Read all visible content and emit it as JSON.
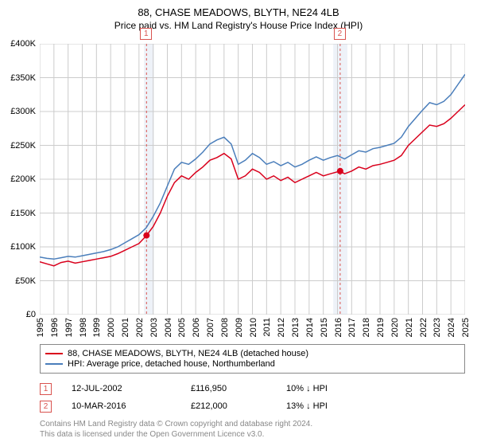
{
  "title": {
    "line1": "88, CHASE MEADOWS, BLYTH, NE24 4LB",
    "line2": "Price paid vs. HM Land Registry's House Price Index (HPI)"
  },
  "chart": {
    "type": "line",
    "background_color": "#ffffff",
    "grid_color": "#cccccc",
    "y": {
      "min": 0,
      "max": 400000,
      "step": 50000,
      "prefix": "£",
      "suffix": "K",
      "labels": [
        "£0",
        "£50K",
        "£100K",
        "£150K",
        "£200K",
        "£250K",
        "£300K",
        "£350K",
        "£400K"
      ]
    },
    "x": {
      "min": 1995,
      "max": 2025,
      "step": 1,
      "labels": [
        "1995",
        "1996",
        "1997",
        "1998",
        "1999",
        "2000",
        "2001",
        "2002",
        "2003",
        "2004",
        "2005",
        "2006",
        "2007",
        "2008",
        "2009",
        "2010",
        "2011",
        "2012",
        "2013",
        "2014",
        "2015",
        "2016",
        "2017",
        "2018",
        "2019",
        "2020",
        "2021",
        "2022",
        "2023",
        "2024",
        "2025"
      ]
    },
    "band1": {
      "x_start": 2002.35,
      "x_end": 2003.05,
      "color": "#eef2f8"
    },
    "band2": {
      "x_start": 2015.7,
      "x_end": 2016.7,
      "color": "#eef2f8"
    },
    "vline1": {
      "x": 2002.53,
      "color": "#d9534f",
      "dash": "3,3"
    },
    "vline2": {
      "x": 2016.19,
      "color": "#d9534f",
      "dash": "3,3"
    },
    "marker_labels": {
      "m1": "1",
      "m2": "2"
    },
    "marker_box_color": "#d9534f",
    "series": [
      {
        "name": "88, CHASE MEADOWS, BLYTH, NE24 4LB (detached house)",
        "color": "#d9001c",
        "width": 1.5,
        "data": [
          [
            1995,
            78000
          ],
          [
            1995.5,
            75000
          ],
          [
            1996,
            72000
          ],
          [
            1996.5,
            77000
          ],
          [
            1997,
            79000
          ],
          [
            1997.5,
            76000
          ],
          [
            1998,
            78000
          ],
          [
            1998.5,
            80000
          ],
          [
            1999,
            82000
          ],
          [
            1999.5,
            84000
          ],
          [
            2000,
            86000
          ],
          [
            2000.5,
            90000
          ],
          [
            2001,
            95000
          ],
          [
            2001.5,
            100000
          ],
          [
            2002,
            105000
          ],
          [
            2002.53,
            116950
          ],
          [
            2003,
            130000
          ],
          [
            2003.5,
            150000
          ],
          [
            2004,
            175000
          ],
          [
            2004.5,
            195000
          ],
          [
            2005,
            205000
          ],
          [
            2005.5,
            200000
          ],
          [
            2006,
            210000
          ],
          [
            2006.5,
            218000
          ],
          [
            2007,
            228000
          ],
          [
            2007.5,
            232000
          ],
          [
            2008,
            238000
          ],
          [
            2008.5,
            230000
          ],
          [
            2009,
            200000
          ],
          [
            2009.5,
            205000
          ],
          [
            2010,
            215000
          ],
          [
            2010.5,
            210000
          ],
          [
            2011,
            200000
          ],
          [
            2011.5,
            205000
          ],
          [
            2012,
            198000
          ],
          [
            2012.5,
            203000
          ],
          [
            2013,
            195000
          ],
          [
            2013.5,
            200000
          ],
          [
            2014,
            205000
          ],
          [
            2014.5,
            210000
          ],
          [
            2015,
            205000
          ],
          [
            2015.5,
            208000
          ],
          [
            2016.19,
            212000
          ],
          [
            2016.5,
            208000
          ],
          [
            2017,
            212000
          ],
          [
            2017.5,
            218000
          ],
          [
            2018,
            215000
          ],
          [
            2018.5,
            220000
          ],
          [
            2019,
            222000
          ],
          [
            2019.5,
            225000
          ],
          [
            2020,
            228000
          ],
          [
            2020.5,
            235000
          ],
          [
            2021,
            250000
          ],
          [
            2021.5,
            260000
          ],
          [
            2022,
            270000
          ],
          [
            2022.5,
            280000
          ],
          [
            2023,
            278000
          ],
          [
            2023.5,
            282000
          ],
          [
            2024,
            290000
          ],
          [
            2024.5,
            300000
          ],
          [
            2025,
            310000
          ]
        ],
        "points": [
          {
            "x": 2002.53,
            "y": 116950
          },
          {
            "x": 2016.19,
            "y": 212000
          }
        ],
        "point_radius": 4
      },
      {
        "name": "HPI: Average price, detached house, Northumberland",
        "color": "#4a7ebb",
        "width": 1.5,
        "data": [
          [
            1995,
            85000
          ],
          [
            1995.5,
            83000
          ],
          [
            1996,
            82000
          ],
          [
            1996.5,
            84000
          ],
          [
            1997,
            86000
          ],
          [
            1997.5,
            85000
          ],
          [
            1998,
            87000
          ],
          [
            1998.5,
            89000
          ],
          [
            1999,
            91000
          ],
          [
            1999.5,
            93000
          ],
          [
            2000,
            96000
          ],
          [
            2000.5,
            100000
          ],
          [
            2001,
            106000
          ],
          [
            2001.5,
            112000
          ],
          [
            2002,
            118000
          ],
          [
            2002.5,
            128000
          ],
          [
            2003,
            145000
          ],
          [
            2003.5,
            165000
          ],
          [
            2004,
            190000
          ],
          [
            2004.5,
            215000
          ],
          [
            2005,
            225000
          ],
          [
            2005.5,
            222000
          ],
          [
            2006,
            230000
          ],
          [
            2006.5,
            240000
          ],
          [
            2007,
            252000
          ],
          [
            2007.5,
            258000
          ],
          [
            2008,
            262000
          ],
          [
            2008.5,
            252000
          ],
          [
            2009,
            222000
          ],
          [
            2009.5,
            228000
          ],
          [
            2010,
            238000
          ],
          [
            2010.5,
            232000
          ],
          [
            2011,
            222000
          ],
          [
            2011.5,
            226000
          ],
          [
            2012,
            220000
          ],
          [
            2012.5,
            225000
          ],
          [
            2013,
            218000
          ],
          [
            2013.5,
            222000
          ],
          [
            2014,
            228000
          ],
          [
            2014.5,
            233000
          ],
          [
            2015,
            228000
          ],
          [
            2015.5,
            232000
          ],
          [
            2016,
            235000
          ],
          [
            2016.5,
            230000
          ],
          [
            2017,
            236000
          ],
          [
            2017.5,
            242000
          ],
          [
            2018,
            240000
          ],
          [
            2018.5,
            245000
          ],
          [
            2019,
            247000
          ],
          [
            2019.5,
            250000
          ],
          [
            2020,
            253000
          ],
          [
            2020.5,
            262000
          ],
          [
            2021,
            278000
          ],
          [
            2021.5,
            290000
          ],
          [
            2022,
            302000
          ],
          [
            2022.5,
            313000
          ],
          [
            2023,
            310000
          ],
          [
            2023.5,
            315000
          ],
          [
            2024,
            325000
          ],
          [
            2024.5,
            340000
          ],
          [
            2025,
            355000
          ]
        ]
      }
    ]
  },
  "legend": {
    "item1": "88, CHASE MEADOWS, BLYTH, NE24 4LB (detached house)",
    "item2": "HPI: Average price, detached house, Northumberland"
  },
  "table": {
    "rows": [
      {
        "marker": "1",
        "date": "12-JUL-2002",
        "price": "£116,950",
        "hpi": "10% ↓ HPI"
      },
      {
        "marker": "2",
        "date": "10-MAR-2016",
        "price": "£212,000",
        "hpi": "13% ↓ HPI"
      }
    ]
  },
  "footer": {
    "line1": "Contains HM Land Registry data © Crown copyright and database right 2024.",
    "line2": "This data is licensed under the Open Government Licence v3.0."
  }
}
